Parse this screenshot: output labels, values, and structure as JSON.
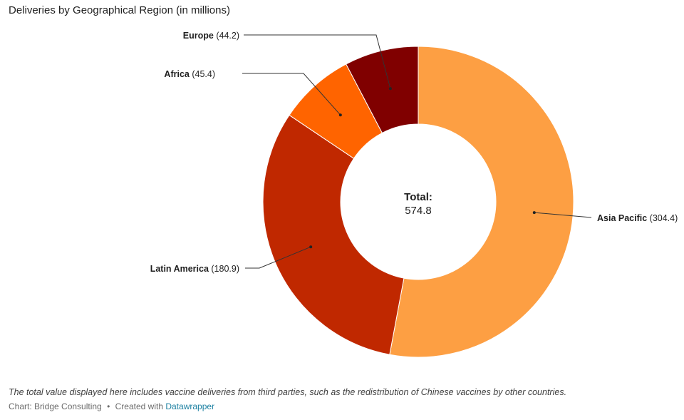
{
  "chart_data": {
    "type": "pie",
    "variant": "donut",
    "title": "Deliveries by Geographical Region (in millions)",
    "slices": [
      {
        "label": "Asia Pacific",
        "value": 304.4,
        "value_text": "(304.4)",
        "color": "#fd9f43",
        "label_side": "right"
      },
      {
        "label": "Latin America",
        "value": 180.9,
        "value_text": "(180.9)",
        "color": "#c02800",
        "label_side": "left"
      },
      {
        "label": "Africa",
        "value": 45.4,
        "value_text": "(45.4)",
        "color": "#ff6400",
        "label_side": "left"
      },
      {
        "label": "Europe",
        "value": 44.2,
        "value_text": "(44.2)",
        "color": "#800000",
        "label_side": "left"
      }
    ],
    "center_label": "Total:",
    "center_value": "574.8"
  },
  "footer": {
    "note": "The total value displayed here includes vaccine deliveries from third parties, such as the redistribution of Chinese vaccines by other countries.",
    "source": "Chart: Bridge Consulting",
    "separator": "•",
    "created_with": "Created with",
    "tool": "Datawrapper"
  }
}
